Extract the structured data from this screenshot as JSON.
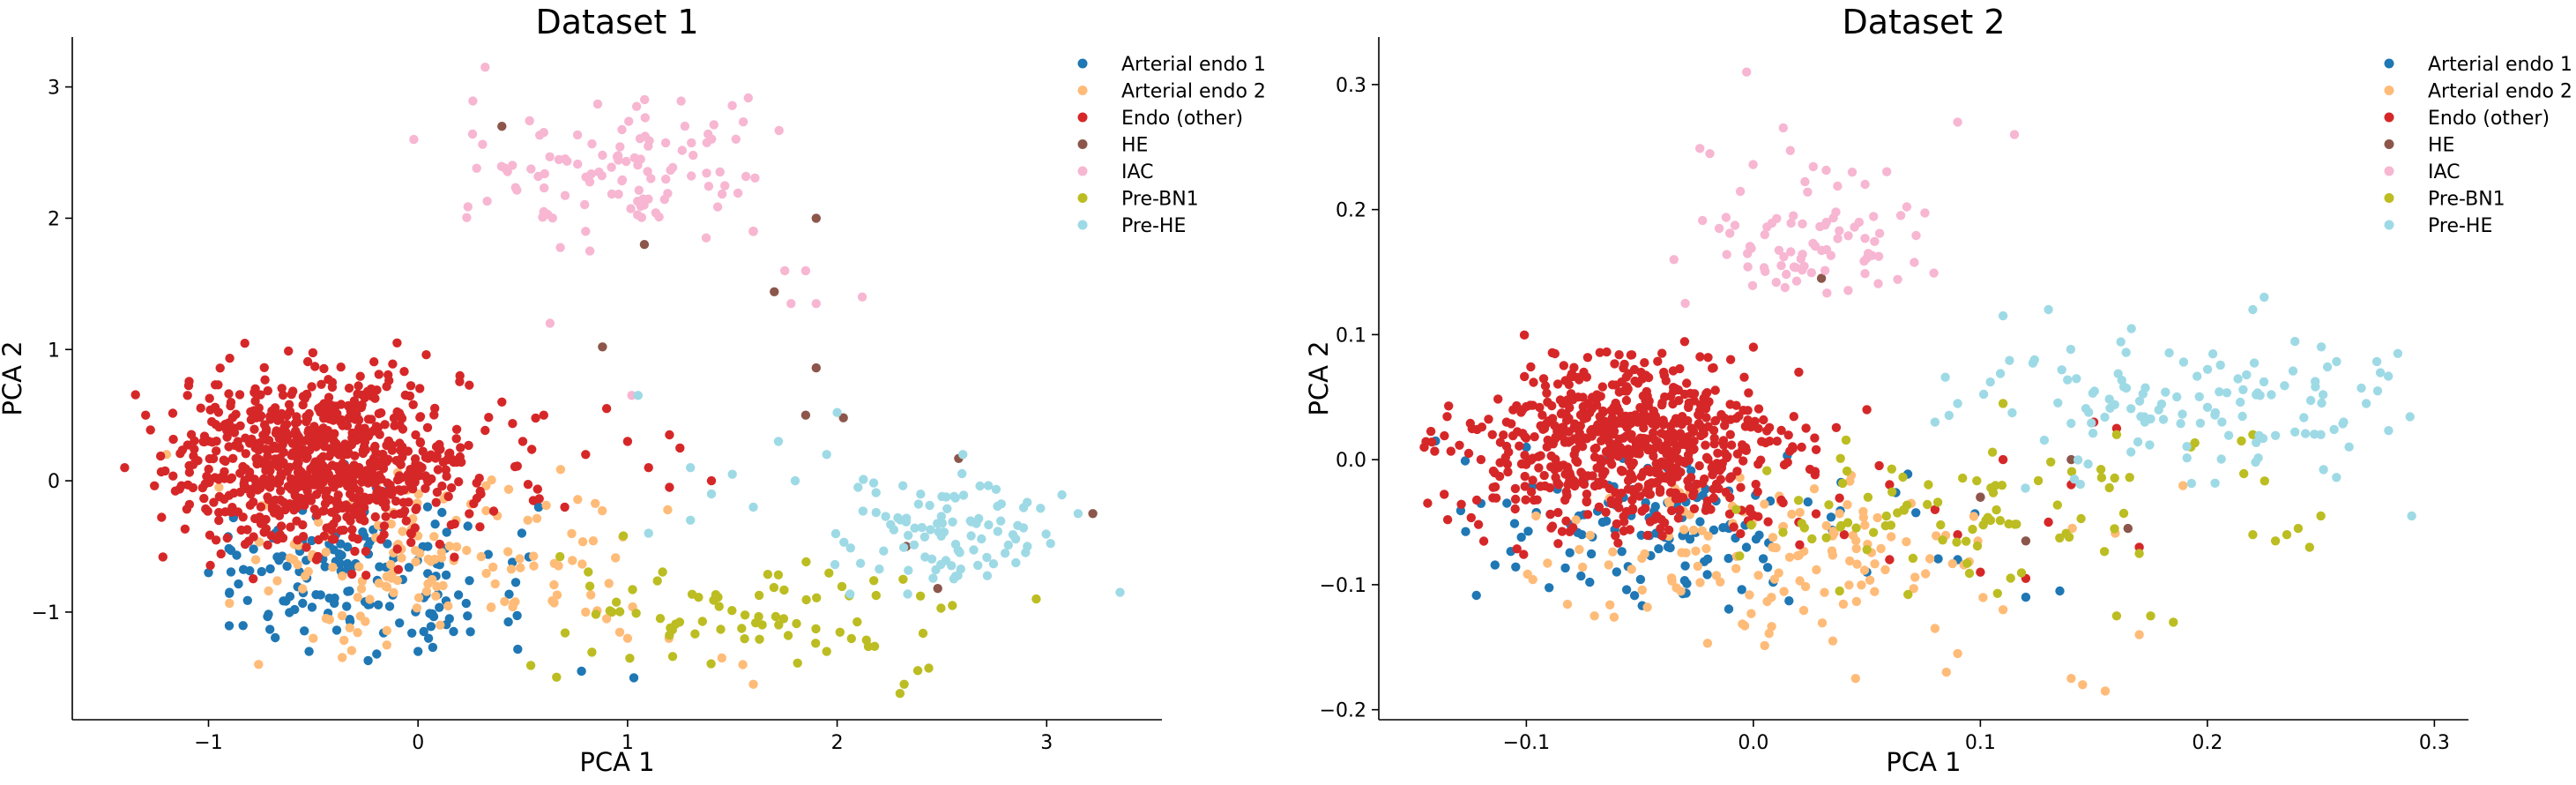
{
  "colors": {
    "Arterial endo 1": "#1f77b4",
    "Arterial endo 2": "#ffbb78",
    "Endo (other)": "#d62728",
    "HE": "#8c564b",
    "IAC": "#f7b6d2",
    "Pre-BN1": "#bcbd22",
    "Pre-HE": "#9edae5"
  },
  "chart_data": [
    {
      "type": "scatter",
      "title": "Dataset 1",
      "xlabel": "PCA 1",
      "ylabel": "PCA 2",
      "xlim": [
        -1.65,
        3.55
      ],
      "ylim": [
        -1.82,
        3.38
      ],
      "xticks": [
        -1,
        0,
        1,
        2,
        3
      ],
      "xtick_labels": [
        "−1",
        "0",
        "1",
        "2",
        "3"
      ],
      "yticks": [
        -1,
        0,
        1,
        2,
        3
      ],
      "ytick_labels": [
        "−1",
        "0",
        "1",
        "2",
        "3"
      ],
      "grid": false,
      "legend": {
        "placement": "top-right",
        "entries": [
          "Arterial endo 1",
          "Arterial endo 2",
          "Endo (other)",
          "HE",
          "IAC",
          "Pre-BN1",
          "Pre-HE"
        ]
      },
      "series": [
        {
          "name": "Arterial endo 1",
          "cluster": {
            "cx": -0.35,
            "cy": -0.7,
            "sx": 0.45,
            "sy": 0.32,
            "n": 150,
            "xmin": -1.0,
            "xmax": 1.05,
            "ymin": -1.5,
            "ymax": 0.2
          },
          "points": [
            [
              -0.52,
              -1.3
            ],
            [
              0.0,
              -1.3
            ],
            [
              -1.0,
              -0.7
            ],
            [
              -0.9,
              -0.85
            ],
            [
              0.25,
              -1.15
            ],
            [
              0.05,
              -1.2
            ],
            [
              1.03,
              -1.5
            ],
            [
              0.78,
              -1.45
            ],
            [
              -0.2,
              -0.05
            ],
            [
              0.45,
              -0.62
            ],
            [
              0.15,
              -1.05
            ]
          ]
        },
        {
          "name": "Arterial endo 2",
          "cluster": {
            "cx": 0.05,
            "cy": -0.6,
            "sx": 0.55,
            "sy": 0.35,
            "n": 150,
            "xmin": -1.0,
            "xmax": 1.25,
            "ymin": -1.5,
            "ymax": 0.2
          },
          "points": [
            [
              1.45,
              -1.35
            ],
            [
              1.6,
              -1.55
            ],
            [
              1.55,
              -1.4
            ],
            [
              -0.5,
              -1.2
            ],
            [
              0.8,
              -1.0
            ],
            [
              0.9,
              -1.05
            ],
            [
              1.0,
              -1.2
            ],
            [
              -1.2,
              0.2
            ],
            [
              -0.95,
              -0.05
            ]
          ]
        },
        {
          "name": "Endo (other)",
          "cluster": {
            "cx": -0.45,
            "cy": 0.15,
            "sx": 0.35,
            "sy": 0.32,
            "n": 820,
            "xmin": -1.35,
            "xmax": 1.3,
            "ymin": -0.75,
            "ymax": 1.05
          },
          "points": [
            [
              -1.4,
              0.1
            ],
            [
              -1.3,
              0.5
            ],
            [
              -1.1,
              0.65
            ],
            [
              0.3,
              -0.1
            ],
            [
              0.6,
              0.5
            ],
            [
              0.9,
              0.55
            ],
            [
              1.0,
              0.3
            ],
            [
              1.1,
              0.1
            ],
            [
              1.25,
              0.25
            ],
            [
              1.2,
              0.35
            ],
            [
              0.7,
              -0.2
            ],
            [
              0.8,
              0.2
            ],
            [
              0.5,
              0.3
            ],
            [
              0.4,
              0.6
            ],
            [
              -0.1,
              1.05
            ],
            [
              0.2,
              0.8
            ],
            [
              1.6,
              1.9
            ],
            [
              1.4,
              0.0
            ],
            [
              1.2,
              -0.05
            ],
            [
              0.55,
              -0.15
            ]
          ]
        },
        {
          "name": "HE",
          "cluster": null,
          "points": [
            [
              0.4,
              2.7
            ],
            [
              1.08,
              1.8
            ],
            [
              1.7,
              1.44
            ],
            [
              1.9,
              2.0
            ],
            [
              0.88,
              1.02
            ],
            [
              1.9,
              0.86
            ],
            [
              1.85,
              0.5
            ],
            [
              2.03,
              0.48
            ],
            [
              2.58,
              0.17
            ],
            [
              3.22,
              -0.25
            ],
            [
              2.33,
              -0.5
            ],
            [
              2.48,
              -0.82
            ]
          ]
        },
        {
          "name": "IAC",
          "cluster": {
            "cx": 1.0,
            "cy": 2.45,
            "sx": 0.38,
            "sy": 0.28,
            "n": 105,
            "xmin": 0.2,
            "xmax": 1.95,
            "ymin": 1.7,
            "ymax": 2.95
          },
          "points": [
            [
              0.32,
              3.15
            ],
            [
              -0.02,
              2.6
            ],
            [
              0.6,
              2.05
            ],
            [
              0.8,
              1.9
            ],
            [
              1.6,
              1.9
            ],
            [
              1.75,
              1.6
            ],
            [
              1.85,
              1.6
            ],
            [
              2.12,
              1.4
            ],
            [
              1.78,
              1.35
            ],
            [
              1.9,
              1.35
            ],
            [
              0.63,
              1.2
            ],
            [
              1.02,
              0.65
            ],
            [
              0.28,
              2.38
            ],
            [
              0.82,
              1.75
            ]
          ]
        },
        {
          "name": "Pre-BN1",
          "cluster": {
            "cx": 1.6,
            "cy": -1.05,
            "sx": 0.55,
            "sy": 0.22,
            "n": 75,
            "xmin": 0.35,
            "xmax": 2.55,
            "ymin": -1.55,
            "ymax": -0.4
          },
          "points": [
            [
              2.32,
              -1.55
            ],
            [
              2.3,
              -1.62
            ],
            [
              0.98,
              -0.42
            ],
            [
              2.95,
              -0.9
            ],
            [
              1.95,
              -1.3
            ],
            [
              2.55,
              -0.95
            ]
          ]
        },
        {
          "name": "Pre-HE",
          "cluster": {
            "cx": 2.55,
            "cy": -0.4,
            "sx": 0.35,
            "sy": 0.22,
            "n": 95,
            "xmin": 1.95,
            "xmax": 3.1,
            "ymin": -0.9,
            "ymax": 0.15
          },
          "points": [
            [
              3.35,
              -0.85
            ],
            [
              3.15,
              -0.25
            ],
            [
              1.72,
              0.3
            ],
            [
              1.95,
              0.2
            ],
            [
              2.0,
              0.52
            ],
            [
              1.3,
              -0.3
            ],
            [
              1.1,
              -0.4
            ],
            [
              1.3,
              0.1
            ],
            [
              1.05,
              0.65
            ],
            [
              1.4,
              -0.1
            ],
            [
              1.6,
              -0.2
            ],
            [
              2.6,
              0.2
            ],
            [
              2.1,
              -0.05
            ],
            [
              1.8,
              0.0
            ],
            [
              1.5,
              0.05
            ]
          ]
        }
      ]
    },
    {
      "type": "scatter",
      "title": "Dataset 2",
      "xlabel": "PCA 1",
      "ylabel": "PCA 2",
      "xlim": [
        -0.165,
        0.315
      ],
      "ylim": [
        -0.208,
        0.338
      ],
      "xticks": [
        -0.1,
        0.0,
        0.1,
        0.2,
        0.3
      ],
      "xtick_labels": [
        "−0.1",
        "0.0",
        "0.1",
        "0.2",
        "0.3"
      ],
      "yticks": [
        -0.2,
        -0.1,
        0.0,
        0.1,
        0.2,
        0.3
      ],
      "ytick_labels": [
        "−0.2",
        "−0.1",
        "0.0",
        "0.1",
        "0.2",
        "0.3"
      ],
      "grid": false,
      "legend": {
        "placement": "top-right",
        "entries": [
          "Arterial endo 1",
          "Arterial endo 2",
          "Endo (other)",
          "HE",
          "IAC",
          "Pre-BN1",
          "Pre-HE"
        ]
      },
      "series": [
        {
          "name": "Arterial endo 1",
          "cluster": {
            "cx": -0.04,
            "cy": -0.055,
            "sx": 0.045,
            "sy": 0.03,
            "n": 130,
            "xmin": -0.13,
            "xmax": 0.14,
            "ymin": -0.12,
            "ymax": 0.02
          },
          "points": [
            [
              -0.14,
              0.015
            ],
            [
              -0.12,
              -0.035
            ],
            [
              -0.1,
              0.01
            ],
            [
              0.135,
              -0.105
            ],
            [
              0.12,
              -0.11
            ],
            [
              0.09,
              -0.08
            ],
            [
              0.05,
              -0.09
            ],
            [
              -0.03,
              -0.085
            ]
          ]
        },
        {
          "name": "Arterial endo 2",
          "cluster": {
            "cx": 0.0,
            "cy": -0.07,
            "sx": 0.06,
            "sy": 0.035,
            "n": 140,
            "xmin": -0.1,
            "xmax": 0.2,
            "ymin": -0.185,
            "ymax": -0.01
          },
          "points": [
            [
              0.045,
              -0.175
            ],
            [
              0.035,
              -0.145
            ],
            [
              0.085,
              -0.17
            ],
            [
              0.14,
              -0.175
            ],
            [
              0.145,
              -0.18
            ],
            [
              0.155,
              -0.185
            ],
            [
              0.17,
              -0.14
            ],
            [
              0.09,
              -0.155
            ],
            [
              0.08,
              -0.135
            ],
            [
              0.11,
              -0.12
            ],
            [
              -0.07,
              -0.125
            ]
          ]
        },
        {
          "name": "Endo (other)",
          "cluster": {
            "cx": -0.055,
            "cy": 0.01,
            "sx": 0.035,
            "sy": 0.035,
            "n": 700,
            "xmin": -0.145,
            "xmax": 0.17,
            "ymin": -0.09,
            "ymax": 0.1
          },
          "points": [
            [
              -0.145,
              0.01
            ],
            [
              -0.12,
              0.0
            ],
            [
              -0.115,
              0.02
            ],
            [
              0.02,
              -0.05
            ],
            [
              0.04,
              -0.06
            ],
            [
              0.06,
              -0.08
            ],
            [
              0.1,
              -0.09
            ],
            [
              0.12,
              -0.095
            ],
            [
              0.13,
              -0.05
            ],
            [
              0.15,
              0.03
            ],
            [
              0.16,
              0.025
            ],
            [
              0.17,
              -0.07
            ],
            [
              0.0,
              0.09
            ],
            [
              -0.01,
              0.08
            ],
            [
              0.02,
              0.07
            ],
            [
              0.05,
              0.04
            ],
            [
              0.06,
              -0.02
            ],
            [
              0.08,
              -0.04
            ],
            [
              0.1,
              -0.03
            ],
            [
              0.09,
              -0.06
            ],
            [
              0.14,
              -0.02
            ],
            [
              0.11,
              0.0
            ]
          ]
        },
        {
          "name": "HE",
          "cluster": null,
          "points": [
            [
              0.03,
              0.145
            ],
            [
              0.12,
              -0.065
            ],
            [
              0.165,
              -0.055
            ],
            [
              0.1,
              -0.03
            ],
            [
              0.14,
              0.0
            ]
          ]
        },
        {
          "name": "IAC",
          "cluster": {
            "cx": 0.03,
            "cy": 0.18,
            "sx": 0.028,
            "sy": 0.035,
            "n": 85,
            "xmin": -0.025,
            "xmax": 0.085,
            "ymin": 0.13,
            "ymax": 0.28
          },
          "points": [
            [
              -0.003,
              0.31
            ],
            [
              0.09,
              0.27
            ],
            [
              0.115,
              0.26
            ],
            [
              -0.035,
              0.16
            ],
            [
              -0.03,
              0.125
            ],
            [
              0.005,
              0.18
            ]
          ]
        },
        {
          "name": "Pre-BN1",
          "cluster": {
            "cx": 0.08,
            "cy": -0.04,
            "sx": 0.06,
            "sy": 0.03,
            "n": 85,
            "xmin": -0.01,
            "xmax": 0.28,
            "ymin": -0.14,
            "ymax": 0.02
          },
          "points": [
            [
              0.23,
              -0.065
            ],
            [
              0.235,
              -0.06
            ],
            [
              0.24,
              -0.055
            ],
            [
              0.245,
              -0.07
            ],
            [
              0.25,
              -0.045
            ],
            [
              0.22,
              -0.06
            ],
            [
              0.16,
              -0.125
            ],
            [
              0.175,
              -0.125
            ],
            [
              0.185,
              -0.13
            ],
            [
              0.17,
              -0.075
            ],
            [
              0.16,
              0.02
            ],
            [
              0.22,
              0.02
            ],
            [
              0.215,
              0.015
            ],
            [
              0.11,
              0.045
            ]
          ]
        },
        {
          "name": "Pre-HE",
          "cluster": {
            "cx": 0.19,
            "cy": 0.045,
            "sx": 0.05,
            "sy": 0.035,
            "n": 120,
            "xmin": 0.08,
            "xmax": 0.29,
            "ymin": -0.05,
            "ymax": 0.12
          },
          "points": [
            [
              0.29,
              -0.045
            ],
            [
              0.225,
              0.13
            ],
            [
              0.22,
              0.12
            ],
            [
              0.11,
              0.115
            ],
            [
              0.13,
              0.12
            ],
            [
              0.09,
              0.045
            ],
            [
              0.08,
              0.03
            ],
            [
              0.27,
              0.045
            ],
            [
              0.275,
              0.055
            ],
            [
              0.25,
              0.02
            ],
            [
              0.26,
              0.03
            ]
          ]
        }
      ]
    }
  ]
}
